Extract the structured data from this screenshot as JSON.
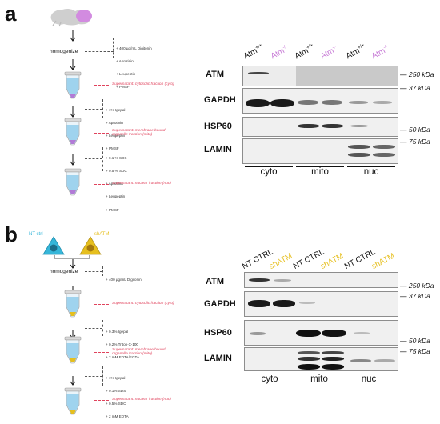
{
  "panel_a": {
    "letter": "a",
    "homogenize_label": "homogenize",
    "buffer_1": [
      "+ 400 µg/mL Digitonin",
      "+ Aprotinin",
      "+ Leupeptin",
      "+ PMSF"
    ],
    "buffer_2": [
      "+ 1% Igepal",
      "+ Aprotinin",
      "+ Leupeptin",
      "+ PMSF"
    ],
    "buffer_3": [
      "+ 0.1 % SDS",
      "+ 0.5 % SDC",
      "+ Aprotinin",
      "+ Leupeptin",
      "+ PMSF"
    ],
    "fraction_1": "Supernatant: cytosolic fraction (cyto)",
    "fraction_2": "Supernatant: membrane bound\norganelle fraction (mito)",
    "fraction_3": "Supernatant: nuclear fraction (nuc)",
    "lanes": [
      {
        "base": "Atm",
        "sup": "+/+",
        "color": "#111111"
      },
      {
        "base": "Atm",
        "sup": "-/-",
        "color": "#c77ad6"
      },
      {
        "base": "Atm",
        "sup": "+/+",
        "color": "#111111"
      },
      {
        "base": "Atm",
        "sup": "-/-",
        "color": "#c77ad6"
      },
      {
        "base": "Atm",
        "sup": "+/+",
        "color": "#111111"
      },
      {
        "base": "Atm",
        "sup": "-/-",
        "color": "#c77ad6"
      }
    ],
    "rows": [
      "ATM",
      "GAPDH",
      "HSP60",
      "LAMIN"
    ],
    "markers": [
      "250 kDa",
      "37 kDa",
      "50 kDa",
      "75 kDa"
    ],
    "groups": [
      "cyto",
      "mito",
      "nuc"
    ]
  },
  "panel_b": {
    "letter": "b",
    "cell_labels": [
      "NT ctrl",
      "shATM"
    ],
    "homogenize_label": "homogenize",
    "buffer_1": [
      "+ 400 µg/mL Digitonin"
    ],
    "buffer_2": [
      "+ 0.3% Igepal",
      "+ 0.2% Triton-X-100",
      "+ 2 mM EDTA/EGTA"
    ],
    "buffer_3": [
      "+ 1% Igepal",
      "+ 0.1% SDS",
      "+ 0.5% SDC",
      "+ 2 mM EDTA"
    ],
    "fraction_1": "Supernatant: cytosolic fraction (cyto)",
    "fraction_2": "Supernatant: membrane bound\norganelle fraction (mito)",
    "fraction_3": "Supernatant: nuclear fraction (nuc)",
    "lanes": [
      {
        "label": "NT CTRL",
        "color": "#111111"
      },
      {
        "label": "shATM",
        "color": "#e6bf1e"
      },
      {
        "label": "NT CTRL",
        "color": "#111111"
      },
      {
        "label": "shATM",
        "color": "#e6bf1e"
      },
      {
        "label": "NT CTRL",
        "color": "#111111"
      },
      {
        "label": "shATM",
        "color": "#e6bf1e"
      }
    ],
    "rows": [
      "ATM",
      "GAPDH",
      "HSP60",
      "LAMIN"
    ],
    "markers": [
      "250 kDa",
      "37 kDa",
      "50 kDa",
      "75 kDa"
    ],
    "groups": [
      "cyto",
      "mito",
      "nuc"
    ]
  },
  "colors": {
    "tube_fill_a": "#9fd3ee",
    "tube_tip_a": "#b27ad6",
    "tube_tip_b": "#e6bf1e",
    "fraction_red": "#e0435d",
    "cell_cyan": "#36b6d9",
    "cell_yellow": "#e6bf1e",
    "brain_purple": "#d28be0",
    "brain_gray": "#cfcfcf"
  }
}
